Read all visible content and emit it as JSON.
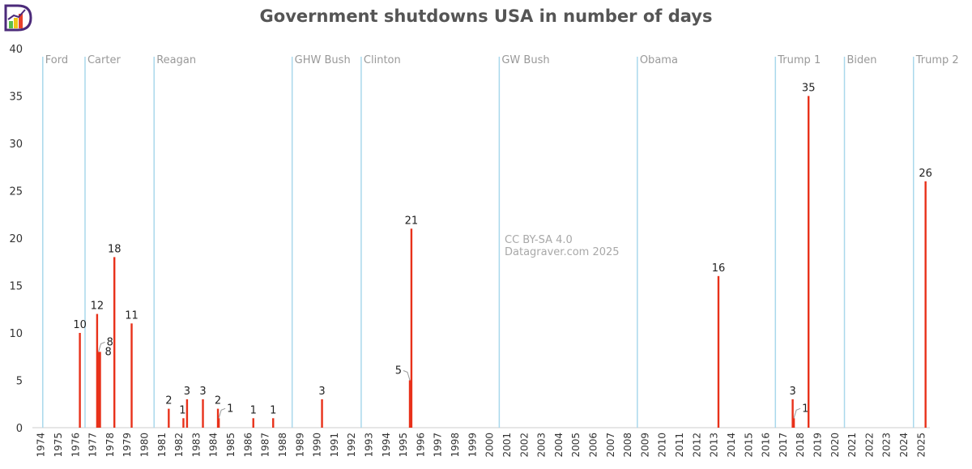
{
  "title": "Government shutdowns USA in number of days",
  "watermark": {
    "license": "CC BY-SA 4.0",
    "source": "Datagraver.com 2025"
  },
  "logo": {
    "name": "datagraver-logo",
    "colors": [
      "#4b2a7a",
      "#f0c419",
      "#5bbf4a",
      "#e8412b"
    ]
  },
  "colors": {
    "bar": "#e8311a",
    "president_line": "#a9d8ec",
    "axis_text": "#333333",
    "president_text": "#999999",
    "grid": "#eeeeee"
  },
  "chart_data": {
    "type": "bar",
    "title": "Government shutdowns USA in number of days",
    "xlabel": "",
    "ylabel": "",
    "xlim": [
      1974,
      2026
    ],
    "ylim": [
      0,
      40
    ],
    "y_ticks": [
      0,
      5,
      10,
      15,
      20,
      25,
      30,
      35,
      40
    ],
    "x_ticks": [
      "1974",
      "1975",
      "1976",
      "1977",
      "1978",
      "1979",
      "1980",
      "1981",
      "1982",
      "1983",
      "1984",
      "1985",
      "1986",
      "1987",
      "1988",
      "1989",
      "1990",
      "1991",
      "1992",
      "1993",
      "1994",
      "1995",
      "1996",
      "1997",
      "1998",
      "1999",
      "2000",
      "2001",
      "2002",
      "2003",
      "2004",
      "2005",
      "2006",
      "2007",
      "2008",
      "2009",
      "2010",
      "2011",
      "2012",
      "2013",
      "2014",
      "2015",
      "2016",
      "2017",
      "2018",
      "2019",
      "2020",
      "2021",
      "2022",
      "2023",
      "2024",
      "2025"
    ],
    "series": [
      {
        "name": "Shutdown length (days)",
        "values": [
          {
            "year": 1976.75,
            "days": 10,
            "label": "10"
          },
          {
            "year": 1977.75,
            "days": 12,
            "label": "12"
          },
          {
            "year": 1977.83,
            "days": 8,
            "label": "8",
            "leader": true
          },
          {
            "year": 1977.92,
            "days": 8,
            "label": "8"
          },
          {
            "year": 1978.75,
            "days": 18,
            "label": "18"
          },
          {
            "year": 1979.75,
            "days": 11,
            "label": "11"
          },
          {
            "year": 1981.9,
            "days": 2,
            "label": "2"
          },
          {
            "year": 1982.75,
            "days": 1,
            "label": "1"
          },
          {
            "year": 1982.96,
            "days": 3,
            "label": "3"
          },
          {
            "year": 1983.88,
            "days": 3,
            "label": "3"
          },
          {
            "year": 1984.75,
            "days": 2,
            "label": "2"
          },
          {
            "year": 1984.8,
            "days": 1,
            "label": "1",
            "leader": true
          },
          {
            "year": 1986.8,
            "days": 1,
            "label": "1"
          },
          {
            "year": 1987.95,
            "days": 1,
            "label": "1"
          },
          {
            "year": 1990.78,
            "days": 3,
            "label": "3"
          },
          {
            "year": 1995.87,
            "days": 5,
            "label": "5",
            "leader": true
          },
          {
            "year": 1995.96,
            "days": 21,
            "label": "21"
          },
          {
            "year": 2013.75,
            "days": 16,
            "label": "16"
          },
          {
            "year": 2018.05,
            "days": 3,
            "label": "3"
          },
          {
            "year": 2018.12,
            "days": 1,
            "label": "1",
            "leader": true
          },
          {
            "year": 2018.97,
            "days": 35,
            "label": "35"
          },
          {
            "year": 2025.75,
            "days": 26,
            "label": "26"
          }
        ]
      }
    ],
    "presidents": [
      {
        "name": "Ford",
        "start": 1974.6
      },
      {
        "name": "Carter",
        "start": 1977.05
      },
      {
        "name": "Reagan",
        "start": 1981.05
      },
      {
        "name": "GHW Bush",
        "start": 1989.05
      },
      {
        "name": "Clinton",
        "start": 1993.05
      },
      {
        "name": "GW Bush",
        "start": 2001.05
      },
      {
        "name": "Obama",
        "start": 2009.05
      },
      {
        "name": "Trump 1",
        "start": 2017.05
      },
      {
        "name": "Biden",
        "start": 2021.05
      },
      {
        "name": "Trump 2",
        "start": 2025.05
      }
    ]
  }
}
